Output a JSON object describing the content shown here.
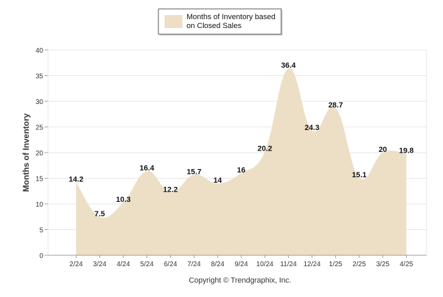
{
  "chart_data": {
    "type": "area",
    "categories": [
      "2/24",
      "3/24",
      "4/24",
      "5/24",
      "6/24",
      "7/24",
      "8/24",
      "9/24",
      "10/24",
      "11/24",
      "12/24",
      "1/25",
      "2/25",
      "3/25",
      "4/25"
    ],
    "series": [
      {
        "name": "Months of Inventory based on Closed Sales",
        "name_lines": [
          "Months of Inventory based",
          "on Closed Sales"
        ],
        "values": [
          14.2,
          7.5,
          10.3,
          16.4,
          12.2,
          15.7,
          14,
          16,
          20.2,
          36.4,
          24.3,
          28.7,
          15.1,
          20,
          19.8
        ],
        "labels": [
          "14.2",
          "7.5",
          "10.3",
          "16.4",
          "12.2",
          "15.7",
          "14",
          "16",
          "20.2",
          "36.4",
          "24.3",
          "28.7",
          "15.1",
          "20",
          "19.8"
        ],
        "color": "#ecdfc6"
      }
    ],
    "title": "",
    "xlabel": "",
    "ylabel": "Months of Inventory",
    "ylim": [
      0,
      40
    ],
    "yticks": [
      "0",
      "5",
      "10",
      "15",
      "20",
      "25",
      "30",
      "35",
      "40"
    ],
    "grid": true,
    "legend": "top-center",
    "gridColor": "#e6e6e6",
    "axisColor": "#999999"
  },
  "footer": {
    "copyright": "Copyright © Trendgraphix, Inc."
  }
}
